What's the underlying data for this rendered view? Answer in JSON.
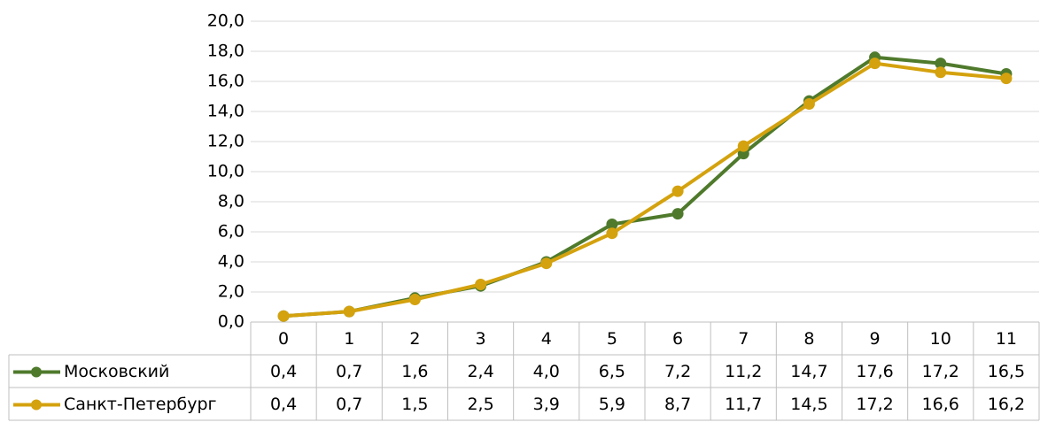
{
  "chart_data": {
    "type": "line",
    "categories": [
      "0",
      "1",
      "2",
      "3",
      "4",
      "5",
      "6",
      "7",
      "8",
      "9",
      "10",
      "11"
    ],
    "series": [
      {
        "name": "Московский",
        "color": "#4f7a2c",
        "values": [
          0.4,
          0.7,
          1.6,
          2.4,
          4.0,
          6.5,
          7.2,
          11.2,
          14.7,
          17.6,
          17.2,
          16.5
        ],
        "value_labels": [
          "0,4",
          "0,7",
          "1,6",
          "2,4",
          "4,0",
          "6,5",
          "7,2",
          "11,2",
          "14,7",
          "17,6",
          "17,2",
          "16,5"
        ]
      },
      {
        "name": "Санкт-Петербург",
        "color": "#d4a20e",
        "values": [
          0.4,
          0.7,
          1.5,
          2.5,
          3.9,
          5.9,
          8.7,
          11.7,
          14.5,
          17.2,
          16.6,
          16.2
        ],
        "value_labels": [
          "0,4",
          "0,7",
          "1,5",
          "2,5",
          "3,9",
          "5,9",
          "8,7",
          "11,7",
          "14,5",
          "17,2",
          "16,6",
          "16,2"
        ]
      }
    ],
    "ylim": [
      0,
      20
    ],
    "yticks": [
      {
        "value": 0,
        "label": "0,0"
      },
      {
        "value": 2,
        "label": "2,0"
      },
      {
        "value": 4,
        "label": "4,0"
      },
      {
        "value": 6,
        "label": "6,0"
      },
      {
        "value": 8,
        "label": "8,0"
      },
      {
        "value": 10,
        "label": "10,0"
      },
      {
        "value": 12,
        "label": "12,0"
      },
      {
        "value": 14,
        "label": "14,0"
      },
      {
        "value": 16,
        "label": "16,0"
      },
      {
        "value": 18,
        "label": "18,0"
      },
      {
        "value": 20,
        "label": "20,0"
      }
    ],
    "grid": true
  }
}
